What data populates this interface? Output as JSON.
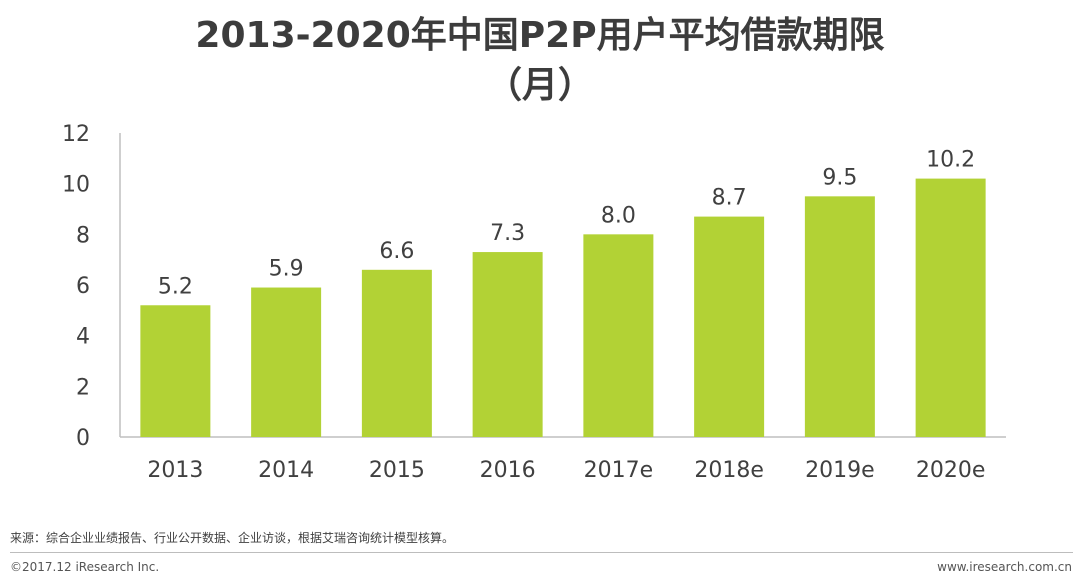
{
  "colors": {
    "bar": "#b2d235",
    "axis": "#bfbfbf",
    "text": "#404040"
  },
  "chart_data": {
    "type": "bar",
    "title": "2013-2020年中国P2P用户平均借款期限",
    "subtitle": "（月）",
    "categories": [
      "2013",
      "2014",
      "2015",
      "2016",
      "2017e",
      "2018e",
      "2019e",
      "2020e"
    ],
    "values": [
      5.2,
      5.9,
      6.6,
      7.3,
      8.0,
      8.7,
      9.5,
      10.2
    ],
    "value_labels": [
      "5.2",
      "5.9",
      "6.6",
      "7.3",
      "8.0",
      "8.7",
      "9.5",
      "10.2"
    ],
    "ylim": [
      0,
      12
    ],
    "yticks": [
      0,
      2,
      4,
      6,
      8,
      10,
      12
    ],
    "xlabel": "",
    "ylabel": "",
    "grid": false
  },
  "footer": {
    "source": "来源：综合企业业绩报告、行业公开数据、企业访谈，根据艾瑞咨询统计模型核算。",
    "copyright": "©2017.12 iResearch Inc.",
    "website": "www.iresearch.com.cn"
  }
}
